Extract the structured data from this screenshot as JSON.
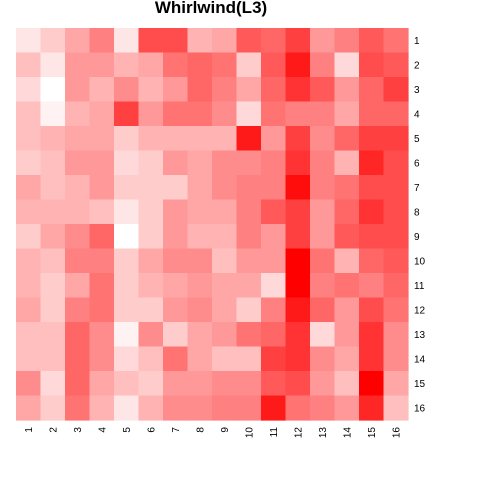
{
  "chart_data": {
    "type": "heatmap",
    "title": "Whirlwind(L3)",
    "xlabel": "",
    "ylabel": "",
    "x_categories": [
      "1",
      "2",
      "3",
      "4",
      "5",
      "6",
      "7",
      "8",
      "9",
      "10",
      "11",
      "12",
      "13",
      "14",
      "15",
      "16"
    ],
    "y_categories": [
      "1",
      "2",
      "3",
      "4",
      "5",
      "6",
      "7",
      "8",
      "9",
      "10",
      "11",
      "12",
      "13",
      "14",
      "15",
      "16"
    ],
    "value_range": [
      0,
      1
    ],
    "color_low": "#ffffff",
    "color_high": "#ff0000",
    "legend": "none",
    "grid": false,
    "values": [
      [
        0.1,
        0.2,
        0.35,
        0.5,
        0.1,
        0.7,
        0.7,
        0.3,
        0.35,
        0.65,
        0.6,
        0.75,
        0.4,
        0.5,
        0.65,
        0.55
      ],
      [
        0.25,
        0.1,
        0.4,
        0.4,
        0.3,
        0.35,
        0.55,
        0.6,
        0.55,
        0.2,
        0.65,
        0.9,
        0.5,
        0.15,
        0.7,
        0.65
      ],
      [
        0.15,
        0.0,
        0.4,
        0.3,
        0.45,
        0.3,
        0.4,
        0.6,
        0.5,
        0.35,
        0.6,
        0.8,
        0.65,
        0.4,
        0.6,
        0.75
      ],
      [
        0.25,
        0.05,
        0.3,
        0.35,
        0.75,
        0.4,
        0.55,
        0.55,
        0.45,
        0.15,
        0.55,
        0.5,
        0.5,
        0.35,
        0.6,
        0.6
      ],
      [
        0.25,
        0.3,
        0.35,
        0.35,
        0.2,
        0.3,
        0.3,
        0.3,
        0.3,
        0.9,
        0.4,
        0.75,
        0.45,
        0.6,
        0.75,
        0.75
      ],
      [
        0.2,
        0.25,
        0.4,
        0.4,
        0.15,
        0.2,
        0.4,
        0.35,
        0.45,
        0.45,
        0.5,
        0.8,
        0.5,
        0.3,
        0.85,
        0.7
      ],
      [
        0.35,
        0.25,
        0.3,
        0.4,
        0.2,
        0.2,
        0.2,
        0.35,
        0.45,
        0.5,
        0.5,
        0.95,
        0.5,
        0.55,
        0.7,
        0.7
      ],
      [
        0.3,
        0.3,
        0.3,
        0.25,
        0.1,
        0.2,
        0.4,
        0.35,
        0.35,
        0.5,
        0.65,
        0.75,
        0.4,
        0.6,
        0.8,
        0.7
      ],
      [
        0.2,
        0.35,
        0.45,
        0.6,
        0.0,
        0.2,
        0.4,
        0.3,
        0.3,
        0.5,
        0.4,
        0.75,
        0.4,
        0.65,
        0.7,
        0.7
      ],
      [
        0.3,
        0.25,
        0.5,
        0.5,
        0.2,
        0.35,
        0.45,
        0.45,
        0.25,
        0.4,
        0.4,
        1.0,
        0.55,
        0.3,
        0.6,
        0.65
      ],
      [
        0.3,
        0.2,
        0.35,
        0.55,
        0.2,
        0.3,
        0.35,
        0.4,
        0.35,
        0.35,
        0.15,
        1.0,
        0.5,
        0.55,
        0.5,
        0.6
      ],
      [
        0.35,
        0.2,
        0.5,
        0.55,
        0.2,
        0.2,
        0.4,
        0.45,
        0.35,
        0.2,
        0.5,
        0.9,
        0.6,
        0.4,
        0.7,
        0.55
      ],
      [
        0.25,
        0.25,
        0.6,
        0.45,
        0.05,
        0.45,
        0.2,
        0.35,
        0.4,
        0.55,
        0.6,
        0.8,
        0.15,
        0.4,
        0.8,
        0.45
      ],
      [
        0.25,
        0.25,
        0.6,
        0.45,
        0.15,
        0.25,
        0.55,
        0.35,
        0.25,
        0.25,
        0.75,
        0.8,
        0.45,
        0.35,
        0.8,
        0.45
      ],
      [
        0.45,
        0.15,
        0.6,
        0.35,
        0.25,
        0.2,
        0.4,
        0.4,
        0.45,
        0.45,
        0.65,
        0.7,
        0.4,
        0.25,
        1.0,
        0.35
      ],
      [
        0.35,
        0.2,
        0.55,
        0.3,
        0.1,
        0.3,
        0.45,
        0.45,
        0.5,
        0.5,
        0.9,
        0.55,
        0.5,
        0.4,
        0.85,
        0.25
      ]
    ]
  }
}
